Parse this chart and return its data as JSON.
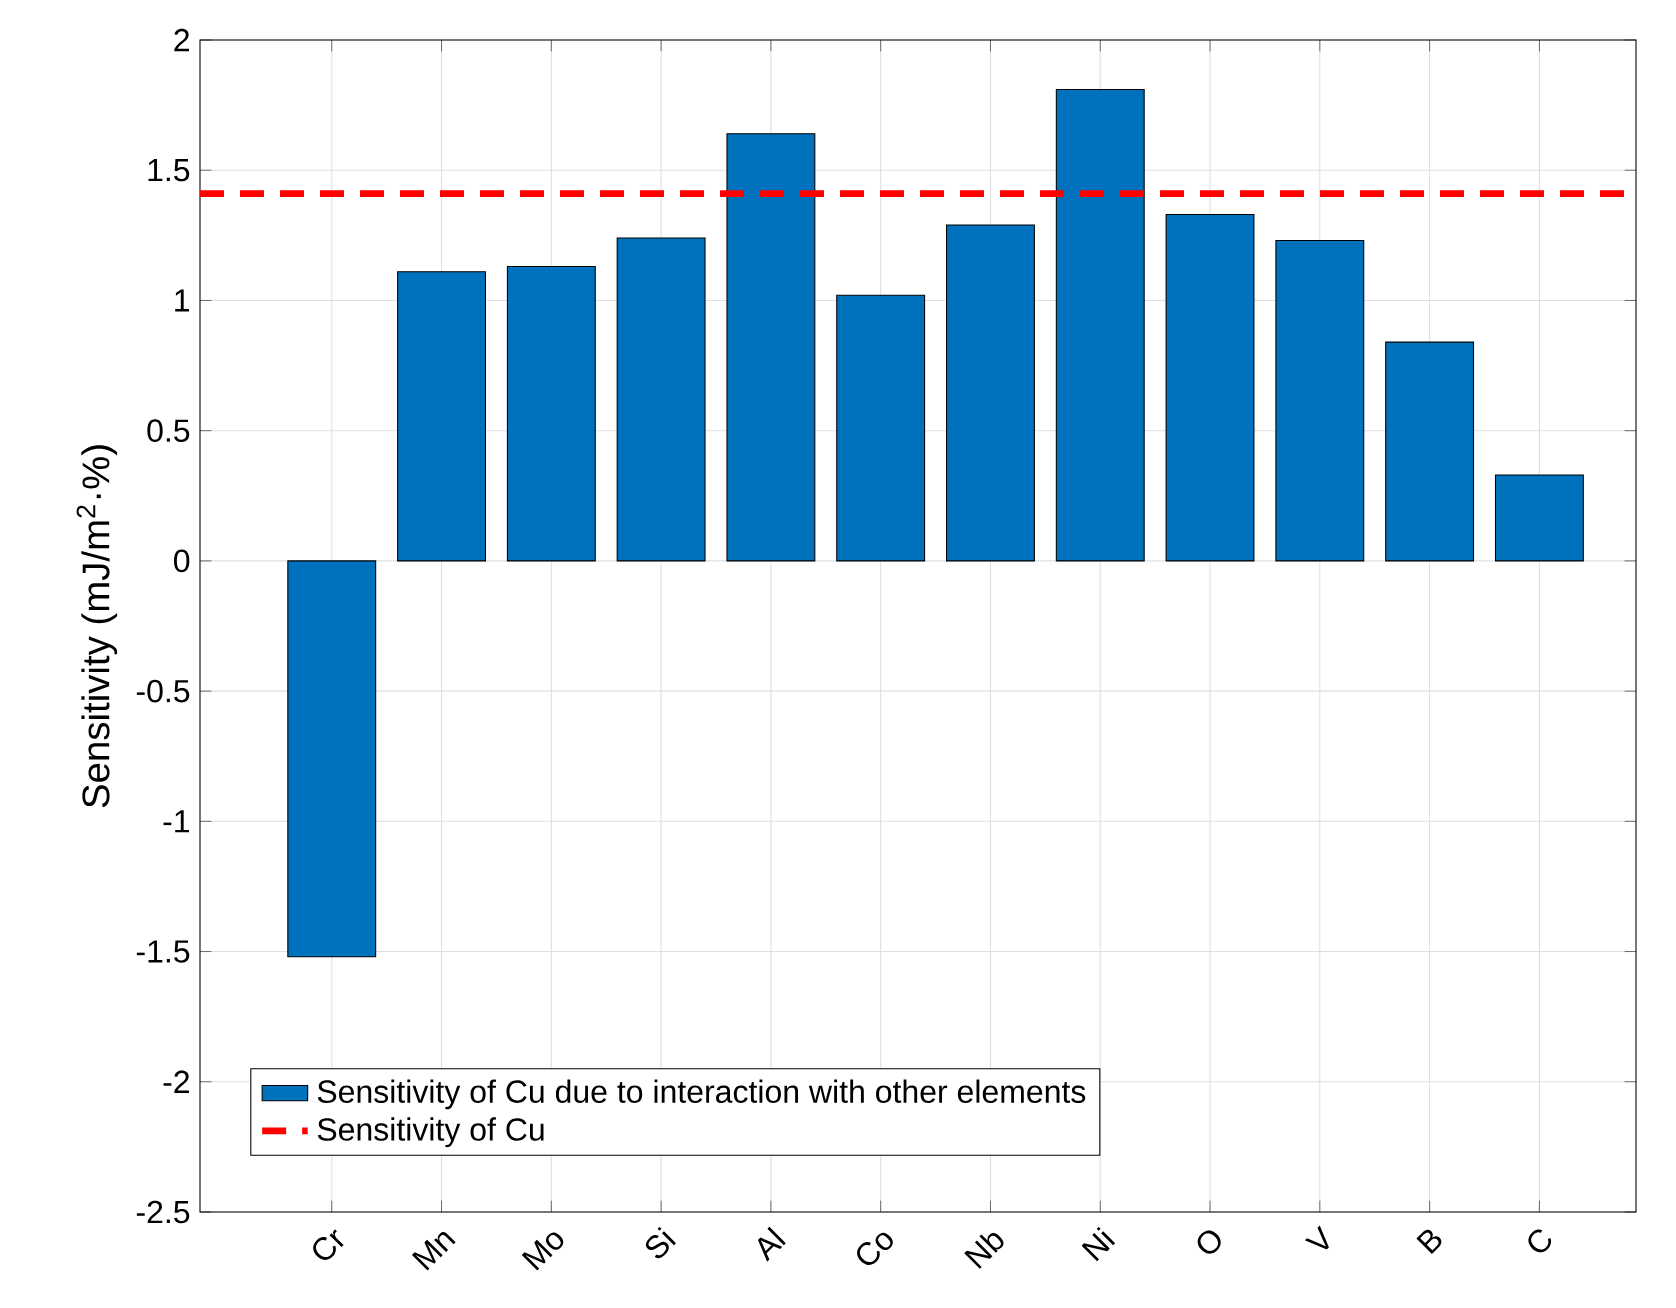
{
  "chart_data": {
    "type": "bar",
    "ylabel": "Sensitivity (mJ/m$^{2}$·%)",
    "categories": [
      "Cr",
      "Mn",
      "Mo",
      "Si",
      "Al",
      "Co",
      "Nb",
      "Ni",
      "O",
      "V",
      "B",
      "C"
    ],
    "series": [
      {
        "name": "Sensitivity of Cu due to interaction with other elements",
        "color": "#0072bd",
        "values": [
          -1.52,
          1.11,
          1.13,
          1.24,
          1.64,
          1.02,
          1.29,
          1.81,
          1.33,
          1.23,
          0.84,
          0.33
        ]
      }
    ],
    "ylim": [
      -2.5,
      2
    ],
    "yticks": [
      -2.5,
      -2,
      -1.5,
      -1,
      -0.5,
      0,
      0.5,
      1,
      1.5,
      2
    ],
    "ref_lines": [
      {
        "axis": "y",
        "value": 1.41,
        "label": "Sensitivity of Cu",
        "color": "#ff0000",
        "line_style": "dashed"
      }
    ],
    "grid": true,
    "legend": "bottom left"
  }
}
